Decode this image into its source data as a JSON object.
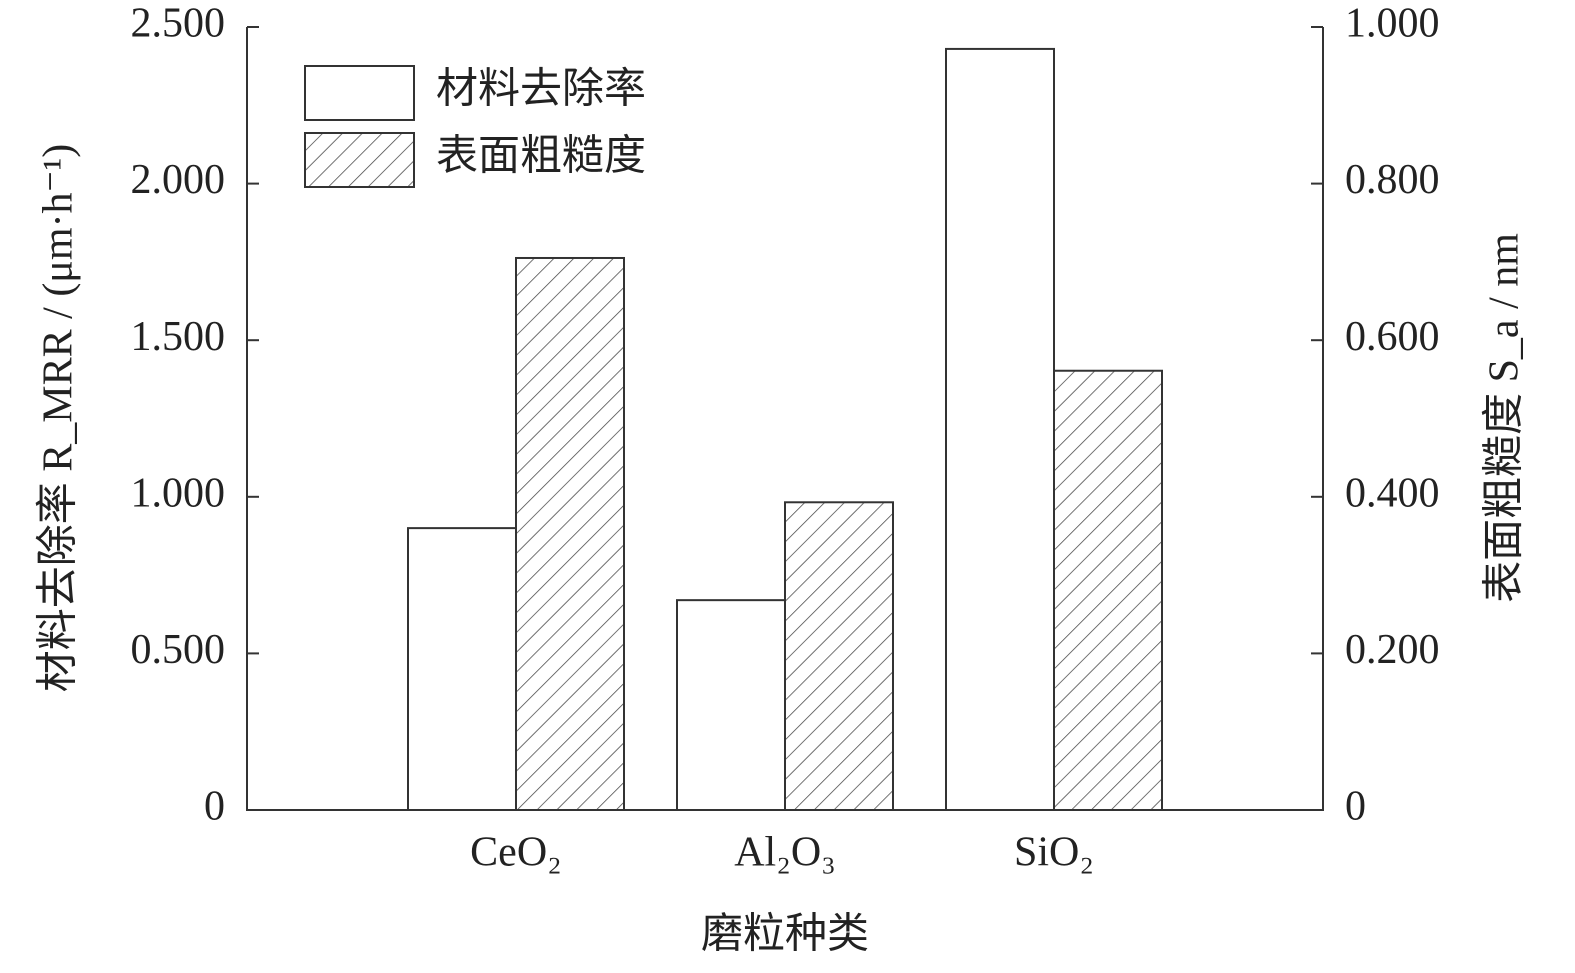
{
  "chart_data": {
    "type": "bar",
    "x_label": "磨粒种类",
    "y_label": "材料去除率 R_MRR / (μm·h⁻¹)",
    "y2_label": "表面粗糙度 S_a / nm",
    "categories": [
      "CeO₂",
      "Al₂O₃",
      "SiO₂"
    ],
    "series": [
      {
        "name": "材料去除率",
        "color": "#ffffff",
        "hatch": false,
        "values": [
          0.9,
          0.67,
          2.43
        ]
      },
      {
        "name": "表面粗糙度",
        "color": "#ffffff",
        "hatch": true,
        "axis": "y2",
        "values": [
          0.705,
          0.393,
          0.561
        ]
      }
    ],
    "ylim": [
      0,
      2.5
    ],
    "yticks": [
      0,
      {
        "value": 0.5,
        "label": "0.500"
      },
      {
        "value": 1,
        "label": "1.000"
      },
      {
        "value": 1.5,
        "label": "1.500"
      },
      {
        "value": 2,
        "label": "2.000"
      },
      {
        "value": 2.5,
        "label": "2.500"
      }
    ],
    "y2lim": [
      0,
      1
    ],
    "y2ticks": [
      0,
      {
        "value": 0.2,
        "label": "0.200"
      },
      {
        "value": 0.4,
        "label": "0.400"
      },
      {
        "value": 0.6,
        "label": "0.600"
      },
      {
        "value": 0.8,
        "label": "0.800"
      },
      {
        "value": 1,
        "label": "1.000"
      }
    ],
    "legend": "upper left"
  }
}
